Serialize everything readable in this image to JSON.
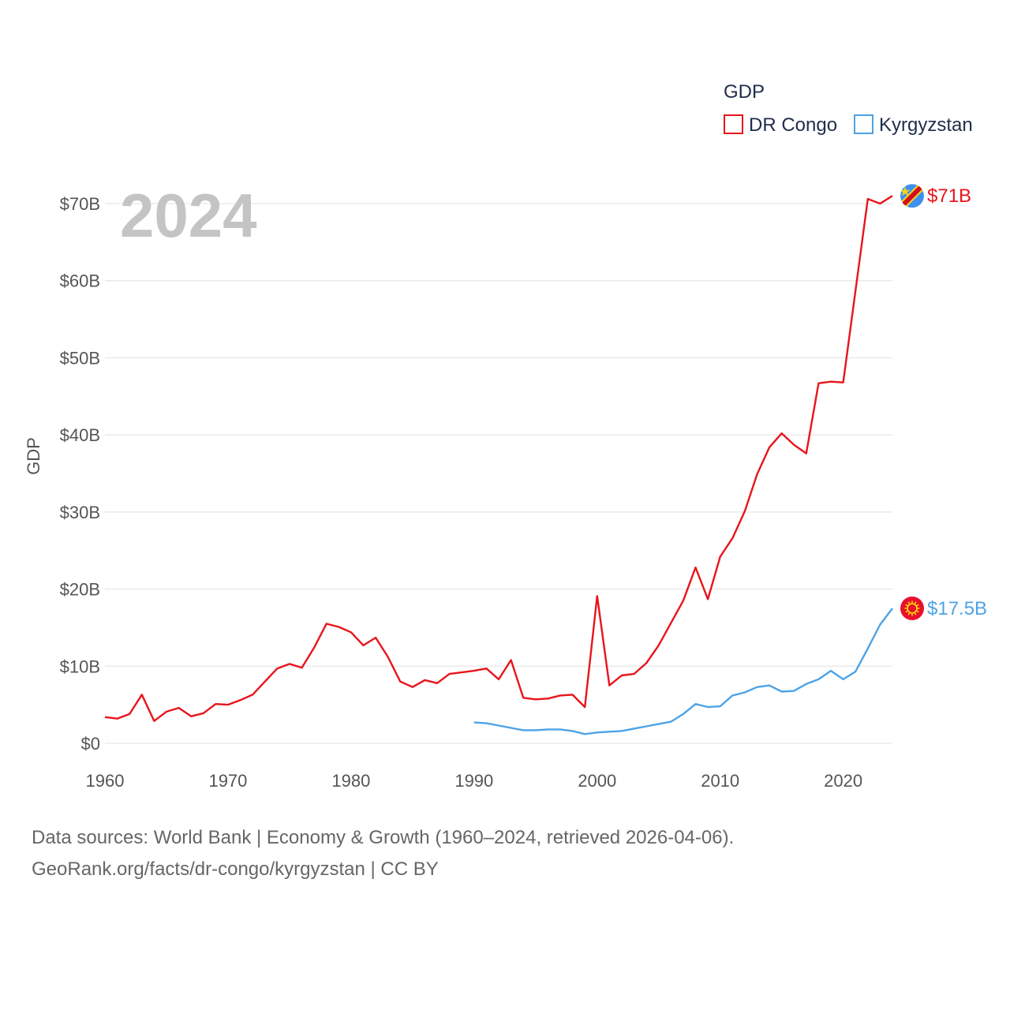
{
  "chart_data": {
    "type": "line",
    "title": "",
    "watermark_year": "2024",
    "ylabel": "GDP",
    "xlabel": "",
    "xlim": [
      1960,
      2024
    ],
    "ylim": [
      0,
      70
    ],
    "y_ticks": [
      {
        "value": 0,
        "label": "$0"
      },
      {
        "value": 10,
        "label": "$10B"
      },
      {
        "value": 20,
        "label": "$20B"
      },
      {
        "value": 30,
        "label": "$30B"
      },
      {
        "value": 40,
        "label": "$40B"
      },
      {
        "value": 50,
        "label": "$50B"
      },
      {
        "value": 60,
        "label": "$60B"
      },
      {
        "value": 70,
        "label": "$70B"
      }
    ],
    "x_ticks": [
      {
        "value": 1960,
        "label": "1960"
      },
      {
        "value": 1970,
        "label": "1970"
      },
      {
        "value": 1980,
        "label": "1980"
      },
      {
        "value": 1990,
        "label": "1990"
      },
      {
        "value": 2000,
        "label": "2000"
      },
      {
        "value": 2010,
        "label": "2010"
      },
      {
        "value": 2020,
        "label": "2020"
      }
    ],
    "legend": {
      "title": "GDP",
      "position": "top-right"
    },
    "series": [
      {
        "name": "DR Congo",
        "color": "#e8141c",
        "end_label": "$71B",
        "flag": "dr-congo-flag-icon",
        "x": [
          1960,
          1961,
          1962,
          1963,
          1964,
          1965,
          1966,
          1967,
          1968,
          1969,
          1970,
          1971,
          1972,
          1973,
          1974,
          1975,
          1976,
          1977,
          1978,
          1979,
          1980,
          1981,
          1982,
          1983,
          1984,
          1985,
          1986,
          1987,
          1988,
          1989,
          1990,
          1991,
          1992,
          1993,
          1994,
          1995,
          1996,
          1997,
          1998,
          1999,
          2000,
          2001,
          2002,
          2003,
          2004,
          2005,
          2006,
          2007,
          2008,
          2009,
          2010,
          2011,
          2012,
          2013,
          2014,
          2015,
          2016,
          2017,
          2018,
          2019,
          2020,
          2021,
          2022,
          2023,
          2024
        ],
        "values": [
          3.4,
          3.2,
          3.8,
          6.3,
          2.9,
          4.1,
          4.6,
          3.5,
          3.9,
          5.1,
          5.0,
          5.6,
          6.3,
          8.0,
          9.7,
          10.3,
          9.8,
          12.4,
          15.5,
          15.1,
          14.4,
          12.7,
          13.7,
          11.2,
          8.0,
          7.3,
          8.2,
          7.8,
          9.0,
          9.2,
          9.4,
          9.7,
          8.3,
          10.8,
          5.9,
          5.7,
          5.8,
          6.2,
          6.3,
          4.7,
          19.1,
          7.5,
          8.8,
          9.0,
          10.4,
          12.7,
          15.6,
          18.5,
          22.8,
          18.7,
          24.2,
          26.6,
          30.1,
          34.9,
          38.4,
          40.2,
          38.7,
          37.6,
          46.7,
          46.9,
          46.8,
          58.7,
          70.6,
          70.0,
          71.0
        ]
      },
      {
        "name": "Kyrgyzstan",
        "color": "#4da3e6",
        "end_label": "$17.5B",
        "flag": "kyrgyzstan-flag-icon",
        "x": [
          1990,
          1991,
          1992,
          1993,
          1994,
          1995,
          1996,
          1997,
          1998,
          1999,
          2000,
          2001,
          2002,
          2003,
          2004,
          2005,
          2006,
          2007,
          2008,
          2009,
          2010,
          2011,
          2012,
          2013,
          2014,
          2015,
          2016,
          2017,
          2018,
          2019,
          2020,
          2021,
          2022,
          2023,
          2024
        ],
        "values": [
          2.7,
          2.6,
          2.3,
          2.0,
          1.7,
          1.7,
          1.8,
          1.8,
          1.6,
          1.2,
          1.4,
          1.5,
          1.6,
          1.9,
          2.2,
          2.5,
          2.8,
          3.8,
          5.1,
          4.7,
          4.8,
          6.2,
          6.6,
          7.3,
          7.5,
          6.7,
          6.8,
          7.7,
          8.3,
          9.4,
          8.3,
          9.3,
          12.3,
          15.4,
          17.5
        ]
      }
    ]
  },
  "footer": {
    "line1": "Data sources: World Bank | Economy & Growth (1960–2024, retrieved 2026-04-06).",
    "line2": "GeoRank.org/facts/dr-congo/kyrgyzstan | CC BY"
  }
}
